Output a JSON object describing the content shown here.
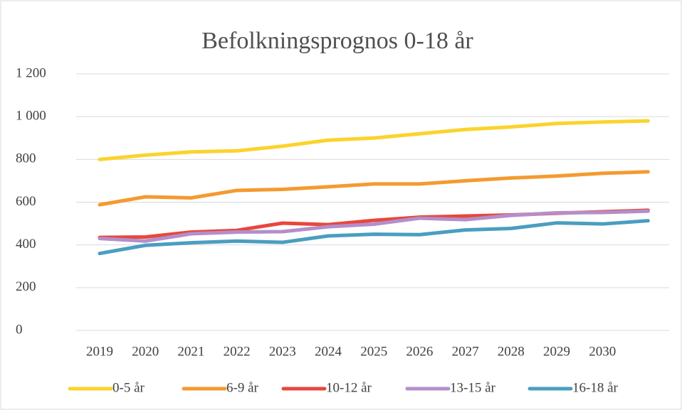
{
  "chart_data": {
    "type": "line",
    "title": "Befolkningsprognos 0-18 år",
    "categories": [
      "2019",
      "2020",
      "2021",
      "2022",
      "2023",
      "2024",
      "2025",
      "2026",
      "2027",
      "2028",
      "2029",
      "2030",
      null
    ],
    "series": [
      {
        "name": "0-5 år",
        "color": "#fbd32b",
        "values": [
          800,
          820,
          835,
          840,
          862,
          890,
          900,
          920,
          940,
          952,
          968,
          975,
          980
        ]
      },
      {
        "name": "6-9 år",
        "color": "#f59a30",
        "values": [
          588,
          625,
          620,
          655,
          660,
          672,
          685,
          685,
          700,
          713,
          722,
          735,
          742
        ]
      },
      {
        "name": "10-12 år",
        "color": "#e8473c",
        "values": [
          435,
          437,
          460,
          468,
          502,
          495,
          515,
          530,
          535,
          540,
          548,
          555,
          562
        ]
      },
      {
        "name": "13-15 år",
        "color": "#b48ecb",
        "values": [
          430,
          418,
          452,
          460,
          462,
          485,
          497,
          525,
          518,
          538,
          550,
          552,
          558
        ]
      },
      {
        "name": "16-18 år",
        "color": "#4a9ec0",
        "values": [
          360,
          398,
          410,
          418,
          412,
          442,
          450,
          448,
          470,
          477,
          503,
          498,
          513
        ]
      }
    ],
    "ylim": [
      0,
      1200
    ],
    "yticks": [
      0,
      200,
      400,
      600,
      800,
      {
        "value": 1000,
        "label": "1 000"
      },
      {
        "value": 1200,
        "label": "1 200"
      }
    ],
    "grid": true,
    "legend": "bottom"
  }
}
